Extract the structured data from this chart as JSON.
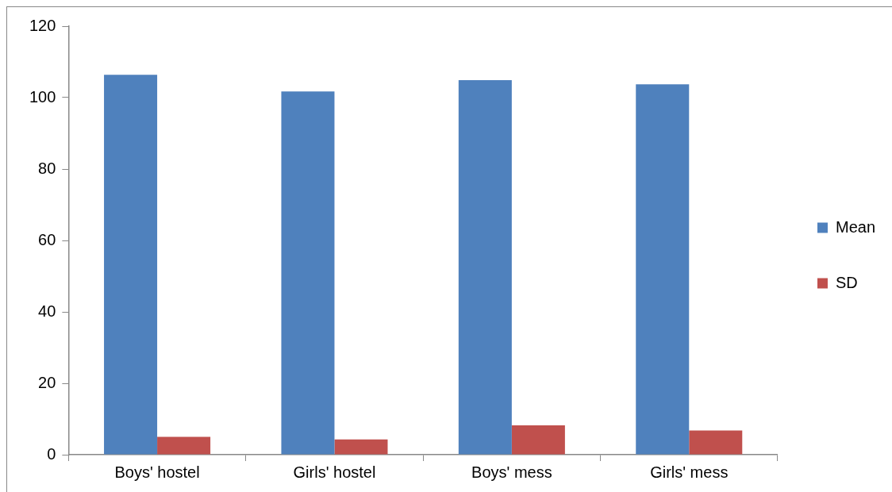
{
  "chart_data": {
    "type": "bar",
    "categories": [
      "Boys' hostel",
      "Girls' hostel",
      "Boys' mess",
      "Girls' mess"
    ],
    "series": [
      {
        "name": "Mean",
        "color": "#4f81bd",
        "values": [
          106.4,
          101.7,
          104.9,
          103.7
        ]
      },
      {
        "name": "SD",
        "color": "#c0504d",
        "values": [
          5.0,
          4.3,
          8.2,
          6.8
        ]
      }
    ],
    "ylim": [
      0,
      120
    ],
    "yticks": [
      0,
      20,
      40,
      60,
      80,
      100,
      120
    ],
    "grid": false,
    "legend": "right"
  }
}
